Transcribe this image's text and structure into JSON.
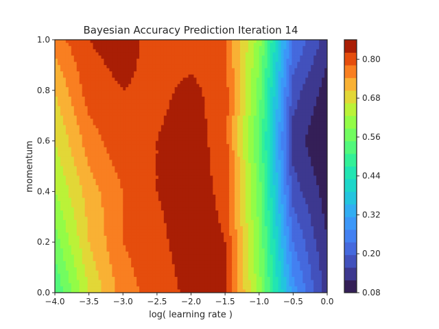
{
  "chart_data": {
    "type": "contour",
    "title": "Bayesian Accuracy Prediction Iteration 14",
    "xlabel": "log( learning rate )",
    "ylabel": "momentum",
    "xlim": [
      -4.0,
      0.0
    ],
    "ylim": [
      0.0,
      1.0
    ],
    "x_ticks": [
      "−4.0",
      "−3.5",
      "−3.0",
      "−2.5",
      "−2.0",
      "−1.5",
      "−1.0",
      "−0.5",
      "0.0"
    ],
    "y_ticks": [
      "0.0",
      "0.2",
      "0.4",
      "0.6",
      "0.8",
      "1.0"
    ],
    "grid": false,
    "colormap": "turbo",
    "colorbar": {
      "min": 0.08,
      "max": 0.86,
      "level_step": 0.04,
      "tick_labels": [
        "0.08",
        "0.20",
        "0.32",
        "0.44",
        "0.56",
        "0.68",
        "0.80"
      ],
      "tick_values": [
        0.08,
        0.2,
        0.32,
        0.44,
        0.56,
        0.68,
        0.8
      ]
    },
    "surface_samples": {
      "description_note": "estimated predicted accuracy values at sampled (log learning rate, momentum) points",
      "x": [
        -4.0,
        -3.5,
        -3.0,
        -2.5,
        -2.0,
        -1.5,
        -1.0,
        -0.5,
        0.0
      ],
      "y": [
        0.0,
        0.2,
        0.4,
        0.6,
        0.8,
        1.0
      ],
      "z": [
        [
          0.52,
          0.68,
          0.78,
          0.82,
          0.85,
          0.85,
          0.62,
          0.3,
          0.14
        ],
        [
          0.58,
          0.72,
          0.8,
          0.83,
          0.86,
          0.84,
          0.6,
          0.24,
          0.12
        ],
        [
          0.64,
          0.74,
          0.8,
          0.84,
          0.86,
          0.83,
          0.58,
          0.18,
          0.1
        ],
        [
          0.68,
          0.78,
          0.83,
          0.84,
          0.86,
          0.82,
          0.56,
          0.14,
          0.08
        ],
        [
          0.72,
          0.82,
          0.84,
          0.83,
          0.85,
          0.82,
          0.58,
          0.18,
          0.1
        ],
        [
          0.78,
          0.84,
          0.86,
          0.82,
          0.82,
          0.8,
          0.62,
          0.24,
          0.14
        ]
      ]
    }
  }
}
